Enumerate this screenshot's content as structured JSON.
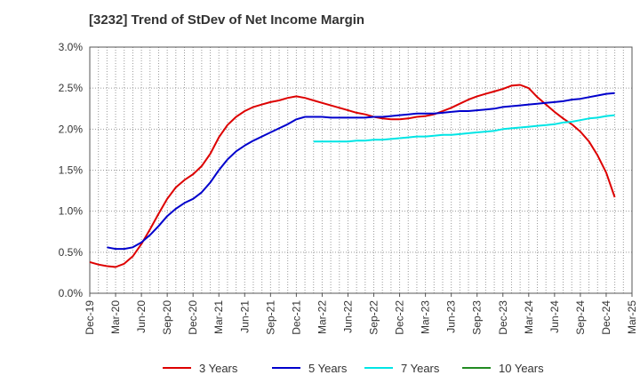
{
  "chart_data": {
    "type": "line",
    "title": "[3232]  Trend of StDev of Net Income Margin",
    "xlabel": "",
    "ylabel": "",
    "x_ticks": [
      "Dec-19",
      "Mar-20",
      "Jun-20",
      "Sep-20",
      "Dec-20",
      "Mar-21",
      "Jun-21",
      "Sep-21",
      "Dec-21",
      "Mar-22",
      "Jun-22",
      "Sep-22",
      "Dec-22",
      "Mar-23",
      "Jun-23",
      "Sep-23",
      "Dec-23",
      "Mar-24",
      "Jun-24",
      "Sep-24",
      "Dec-24",
      "Mar-25"
    ],
    "y_ticks": [
      "0.0%",
      "0.5%",
      "1.0%",
      "1.5%",
      "2.0%",
      "2.5%",
      "3.0%"
    ],
    "ylim": [
      0,
      3.0
    ],
    "y_unit": "%",
    "grid": true,
    "legend_position": "bottom",
    "series": [
      {
        "name": "3 Years",
        "color": "#dd0000",
        "points": [
          [
            "Dec-19",
            0.38
          ],
          [
            "Jan-20",
            0.35
          ],
          [
            "Feb-20",
            0.33
          ],
          [
            "Mar-20",
            0.32
          ],
          [
            "Apr-20",
            0.36
          ],
          [
            "May-20",
            0.45
          ],
          [
            "Jun-20",
            0.6
          ],
          [
            "Jul-20",
            0.78
          ],
          [
            "Aug-20",
            0.97
          ],
          [
            "Sep-20",
            1.15
          ],
          [
            "Oct-20",
            1.29
          ],
          [
            "Nov-20",
            1.38
          ],
          [
            "Dec-20",
            1.45
          ],
          [
            "Jan-21",
            1.55
          ],
          [
            "Feb-21",
            1.7
          ],
          [
            "Mar-21",
            1.9
          ],
          [
            "Apr-21",
            2.05
          ],
          [
            "May-21",
            2.15
          ],
          [
            "Jun-21",
            2.22
          ],
          [
            "Jul-21",
            2.27
          ],
          [
            "Aug-21",
            2.3
          ],
          [
            "Sep-21",
            2.33
          ],
          [
            "Oct-21",
            2.35
          ],
          [
            "Nov-21",
            2.38
          ],
          [
            "Dec-21",
            2.4
          ],
          [
            "Jan-22",
            2.38
          ],
          [
            "Feb-22",
            2.35
          ],
          [
            "Mar-22",
            2.32
          ],
          [
            "Apr-22",
            2.29
          ],
          [
            "May-22",
            2.26
          ],
          [
            "Jun-22",
            2.23
          ],
          [
            "Jul-22",
            2.2
          ],
          [
            "Aug-22",
            2.18
          ],
          [
            "Sep-22",
            2.15
          ],
          [
            "Oct-22",
            2.13
          ],
          [
            "Nov-22",
            2.12
          ],
          [
            "Dec-22",
            2.12
          ],
          [
            "Jan-23",
            2.13
          ],
          [
            "Feb-23",
            2.15
          ],
          [
            "Mar-23",
            2.16
          ],
          [
            "Apr-23",
            2.18
          ],
          [
            "May-23",
            2.22
          ],
          [
            "Jun-23",
            2.26
          ],
          [
            "Jul-23",
            2.31
          ],
          [
            "Aug-23",
            2.36
          ],
          [
            "Sep-23",
            2.4
          ],
          [
            "Oct-23",
            2.43
          ],
          [
            "Nov-23",
            2.46
          ],
          [
            "Dec-23",
            2.49
          ],
          [
            "Jan-24",
            2.53
          ],
          [
            "Feb-24",
            2.54
          ],
          [
            "Mar-24",
            2.5
          ],
          [
            "Apr-24",
            2.39
          ],
          [
            "May-24",
            2.3
          ],
          [
            "Jun-24",
            2.21
          ],
          [
            "Jul-24",
            2.13
          ],
          [
            "Aug-24",
            2.06
          ],
          [
            "Sep-24",
            1.97
          ],
          [
            "Oct-24",
            1.85
          ],
          [
            "Nov-24",
            1.68
          ],
          [
            "Dec-24",
            1.47
          ],
          [
            "Jan-25",
            1.17
          ]
        ]
      },
      {
        "name": "5 Years",
        "color": "#0000cc",
        "points": [
          [
            "Feb-20",
            0.56
          ],
          [
            "Mar-20",
            0.54
          ],
          [
            "Apr-20",
            0.54
          ],
          [
            "May-20",
            0.56
          ],
          [
            "Jun-20",
            0.62
          ],
          [
            "Jul-20",
            0.71
          ],
          [
            "Aug-20",
            0.82
          ],
          [
            "Sep-20",
            0.94
          ],
          [
            "Oct-20",
            1.03
          ],
          [
            "Nov-20",
            1.1
          ],
          [
            "Dec-20",
            1.15
          ],
          [
            "Jan-21",
            1.23
          ],
          [
            "Feb-21",
            1.35
          ],
          [
            "Mar-21",
            1.5
          ],
          [
            "Apr-21",
            1.63
          ],
          [
            "May-21",
            1.73
          ],
          [
            "Jun-21",
            1.8
          ],
          [
            "Jul-21",
            1.86
          ],
          [
            "Aug-21",
            1.91
          ],
          [
            "Sep-21",
            1.96
          ],
          [
            "Oct-21",
            2.01
          ],
          [
            "Nov-21",
            2.06
          ],
          [
            "Dec-21",
            2.12
          ],
          [
            "Jan-22",
            2.15
          ],
          [
            "Feb-22",
            2.15
          ],
          [
            "Mar-22",
            2.15
          ],
          [
            "Apr-22",
            2.14
          ],
          [
            "May-22",
            2.14
          ],
          [
            "Jun-22",
            2.14
          ],
          [
            "Jul-22",
            2.14
          ],
          [
            "Aug-22",
            2.14
          ],
          [
            "Sep-22",
            2.15
          ],
          [
            "Oct-22",
            2.15
          ],
          [
            "Nov-22",
            2.16
          ],
          [
            "Dec-22",
            2.17
          ],
          [
            "Jan-23",
            2.18
          ],
          [
            "Feb-23",
            2.19
          ],
          [
            "Mar-23",
            2.19
          ],
          [
            "Apr-23",
            2.19
          ],
          [
            "May-23",
            2.2
          ],
          [
            "Jun-23",
            2.21
          ],
          [
            "Jul-23",
            2.22
          ],
          [
            "Aug-23",
            2.22
          ],
          [
            "Sep-23",
            2.23
          ],
          [
            "Oct-23",
            2.24
          ],
          [
            "Nov-23",
            2.25
          ],
          [
            "Dec-23",
            2.27
          ],
          [
            "Jan-24",
            2.28
          ],
          [
            "Feb-24",
            2.29
          ],
          [
            "Mar-24",
            2.3
          ],
          [
            "Apr-24",
            2.31
          ],
          [
            "May-24",
            2.32
          ],
          [
            "Jun-24",
            2.33
          ],
          [
            "Jul-24",
            2.34
          ],
          [
            "Aug-24",
            2.36
          ],
          [
            "Sep-24",
            2.37
          ],
          [
            "Oct-24",
            2.39
          ],
          [
            "Nov-24",
            2.41
          ],
          [
            "Dec-24",
            2.43
          ],
          [
            "Jan-25",
            2.44
          ]
        ]
      },
      {
        "name": "7 Years",
        "color": "#00e5e5",
        "points": [
          [
            "Feb-22",
            1.85
          ],
          [
            "Mar-22",
            1.85
          ],
          [
            "Apr-22",
            1.85
          ],
          [
            "May-22",
            1.85
          ],
          [
            "Jun-22",
            1.85
          ],
          [
            "Jul-22",
            1.86
          ],
          [
            "Aug-22",
            1.86
          ],
          [
            "Sep-22",
            1.87
          ],
          [
            "Oct-22",
            1.87
          ],
          [
            "Nov-22",
            1.88
          ],
          [
            "Dec-22",
            1.89
          ],
          [
            "Jan-23",
            1.9
          ],
          [
            "Feb-23",
            1.91
          ],
          [
            "Mar-23",
            1.91
          ],
          [
            "Apr-23",
            1.92
          ],
          [
            "May-23",
            1.93
          ],
          [
            "Jun-23",
            1.93
          ],
          [
            "Jul-23",
            1.94
          ],
          [
            "Aug-23",
            1.95
          ],
          [
            "Sep-23",
            1.96
          ],
          [
            "Oct-23",
            1.97
          ],
          [
            "Nov-23",
            1.98
          ],
          [
            "Dec-23",
            2.0
          ],
          [
            "Jan-24",
            2.01
          ],
          [
            "Feb-24",
            2.02
          ],
          [
            "Mar-24",
            2.03
          ],
          [
            "Apr-24",
            2.04
          ],
          [
            "May-24",
            2.05
          ],
          [
            "Jun-24",
            2.06
          ],
          [
            "Jul-24",
            2.08
          ],
          [
            "Aug-24",
            2.09
          ],
          [
            "Sep-24",
            2.11
          ],
          [
            "Oct-24",
            2.13
          ],
          [
            "Nov-24",
            2.14
          ],
          [
            "Dec-24",
            2.16
          ],
          [
            "Jan-25",
            2.17
          ]
        ]
      },
      {
        "name": "10 Years",
        "color": "#228b22",
        "points": []
      }
    ]
  }
}
